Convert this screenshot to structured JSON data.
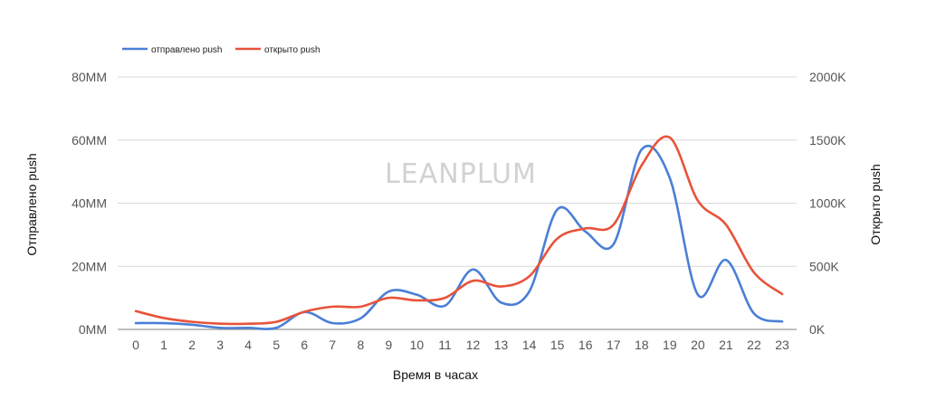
{
  "chart_data": {
    "type": "line",
    "title": "",
    "watermark": "LEANPLUM",
    "xlabel": "Время в часах",
    "ylabel_left": "Отправлено push",
    "ylabel_right": "Открыто push",
    "x": [
      0,
      1,
      2,
      3,
      4,
      5,
      6,
      7,
      8,
      9,
      10,
      11,
      12,
      13,
      14,
      15,
      16,
      17,
      18,
      19,
      20,
      21,
      22,
      23
    ],
    "x_tick_labels": [
      "0",
      "1",
      "2",
      "3",
      "4",
      "5",
      "6",
      "7",
      "8",
      "9",
      "10",
      "11",
      "12",
      "13",
      "14",
      "15",
      "16",
      "17",
      "18",
      "19",
      "20",
      "21",
      "22",
      "23"
    ],
    "y_left_ticks": [
      "0MM",
      "20MM",
      "40MM",
      "60MM",
      "80MM"
    ],
    "y_right_ticks": [
      "0K",
      "500K",
      "1000K",
      "1500K",
      "2000K"
    ],
    "ylim_left": [
      0,
      80
    ],
    "ylim_right": [
      0,
      2000
    ],
    "y_left_unit": "MM",
    "y_right_unit": "K",
    "grid": true,
    "legend_position": "top-left",
    "series": [
      {
        "name": "отправлено push",
        "axis": "left",
        "color": "#4a7fd6",
        "values": [
          2,
          2,
          1.5,
          0.5,
          0.5,
          0.5,
          5.5,
          2,
          3.5,
          12,
          11,
          7.5,
          19,
          8.5,
          12,
          38,
          31,
          27,
          57,
          48,
          11,
          22,
          5,
          2.5
        ]
      },
      {
        "name": "открыто push",
        "axis": "right",
        "color": "#e8533a",
        "values": [
          145,
          90,
          60,
          45,
          45,
          60,
          140,
          180,
          180,
          250,
          230,
          250,
          385,
          340,
          420,
          720,
          800,
          830,
          1300,
          1520,
          1020,
          830,
          450,
          280
        ]
      }
    ]
  }
}
